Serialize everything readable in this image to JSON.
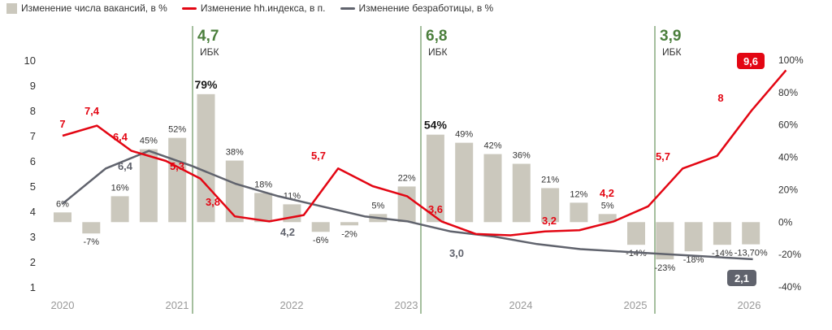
{
  "legend": {
    "vacancies": "Изменение числа вакансий, в %",
    "hh_index": "Изменение hh.индекса, в п.",
    "unemployment": "Изменение безработицы, в %"
  },
  "colors": {
    "bars": "#cbc8bd",
    "hh": "#e30613",
    "unemployment": "#60636d",
    "ibk": "#4b7f3c",
    "axis_text": "#333333",
    "year_text": "#999999",
    "badge_text": "#ffffff"
  },
  "chart_data": {
    "type": "bar+line",
    "left_axis": {
      "ylim": [
        1,
        10
      ],
      "ticks": [
        "1",
        "2",
        "3",
        "4",
        "5",
        "6",
        "7",
        "8",
        "9",
        "10"
      ]
    },
    "right_axis": {
      "ylim": [
        -40,
        100
      ],
      "ticks": [
        "-40%",
        "-20%",
        "0%",
        "20%",
        "40%",
        "60%",
        "80%",
        "100%"
      ]
    },
    "x_axis": {
      "years": [
        "2020",
        "2021",
        "2022",
        "2023",
        "2024",
        "2025",
        "2026"
      ]
    },
    "bars": {
      "name": "Изменение числа вакансий, в %",
      "values": [
        6,
        -7,
        16,
        45,
        52,
        79,
        38,
        18,
        11,
        -6,
        -2,
        5,
        22,
        54,
        49,
        42,
        36,
        21,
        12,
        5,
        -14,
        -23,
        -18,
        -14,
        -13.7
      ],
      "labels": [
        "6%",
        "-7%",
        "16%",
        "45%",
        "52%",
        "79%",
        "38%",
        "18%",
        "11%",
        "-6%",
        "-2%",
        "5%",
        "22%",
        "54%",
        "49%",
        "42%",
        "36%",
        "21%",
        "12%",
        "5%",
        "-14%",
        "-23%",
        "-18%",
        "-14%",
        "-13,70%"
      ],
      "bold": [
        5,
        13
      ]
    },
    "hh_index": {
      "name": "Изменение hh.индекса, в п.",
      "values": [
        7,
        7.4,
        6.4,
        6.0,
        5.3,
        3.8,
        3.6,
        3.85,
        5.7,
        5.0,
        4.6,
        3.6,
        3.1,
        3.05,
        3.2,
        3.25,
        3.6,
        4.2,
        5.7,
        6.2,
        8,
        9.6
      ]
    },
    "hh_labels": [
      "7",
      "7,4",
      "6,4",
      "5,3",
      "3,8",
      "5,7",
      "3,6",
      "3,2",
      "4,2",
      "5,7",
      "8"
    ],
    "hh_badge": "9,6",
    "unemployment": {
      "name": "Изменение безработицы, в %",
      "values": [
        4.3,
        5.7,
        6.4,
        5.8,
        5.1,
        4.6,
        4.2,
        3.8,
        3.6,
        3.2,
        3.0,
        2.7,
        2.5,
        2.4,
        2.3,
        2.2,
        2.1
      ]
    },
    "unemployment_labels": [
      "6,4",
      "4,2",
      "3,0"
    ],
    "unemployment_badge": "2,1",
    "ibk": [
      {
        "value": "4,7",
        "label": "ИБК"
      },
      {
        "value": "6,8",
        "label": "ИБК"
      },
      {
        "value": "3,9",
        "label": "ИБК"
      }
    ]
  }
}
